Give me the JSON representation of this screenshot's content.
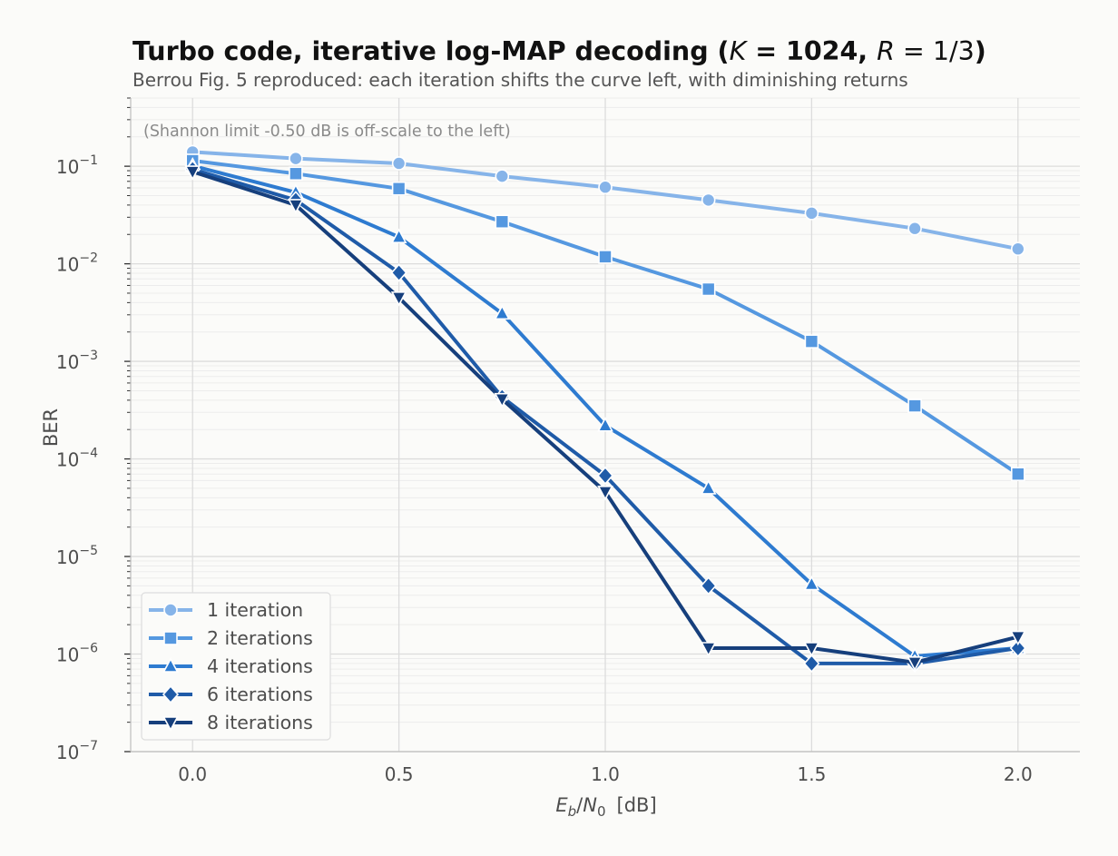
{
  "chart_data": {
    "type": "line",
    "title": "Turbo code, iterative log-MAP decoding (K = 1024, R = 1/3)",
    "title_parts": {
      "prefix": "Turbo code, iterative log-MAP decoding (",
      "k_symbol": "K",
      "k_value": " = 1024, ",
      "r_symbol": "R",
      "r_value": " = 1/3",
      "suffix": ")"
    },
    "subtitle": "Berrou Fig. 5 reproduced: each iteration shifts the curve left, with diminishing returns",
    "annotation": "(Shannon limit -0.50 dB is off-scale to the left)",
    "xlabel": "E_b/N_0 [dB]",
    "xlabel_parts": {
      "e": "E",
      "b": "b",
      "slash": "/",
      "n": "N",
      "zero": "0",
      "unit": "[dB]"
    },
    "ylabel": "BER",
    "xlim": [
      -0.15,
      2.15
    ],
    "ylim": [
      1e-07,
      0.5
    ],
    "yscale": "log",
    "grid": true,
    "legend_position": "lower-left",
    "x_ticks": [
      "0.0",
      "0.5",
      "1.0",
      "1.5",
      "2.0"
    ],
    "x_tick_values": [
      0,
      0.5,
      1.0,
      1.5,
      2.0
    ],
    "y_ticks": [
      {
        "value": 1e-07,
        "base": "10",
        "exp": "−7"
      },
      {
        "value": 1e-06,
        "base": "10",
        "exp": "−6"
      },
      {
        "value": 1e-05,
        "base": "10",
        "exp": "−5"
      },
      {
        "value": 0.0001,
        "base": "10",
        "exp": "−4"
      },
      {
        "value": 0.001,
        "base": "10",
        "exp": "−3"
      },
      {
        "value": 0.01,
        "base": "10",
        "exp": "−2"
      },
      {
        "value": 0.1,
        "base": "10",
        "exp": "−1"
      }
    ],
    "x": [
      0.0,
      0.25,
      0.5,
      0.75,
      1.0,
      1.25,
      1.5,
      1.75,
      2.0
    ],
    "series": [
      {
        "name": "1 iteration",
        "color": "#86b4e9",
        "marker": "circle",
        "values": [
          0.14,
          0.12,
          0.107,
          0.079,
          0.061,
          0.045,
          0.033,
          0.023,
          0.0142
        ]
      },
      {
        "name": "2 iterations",
        "color": "#5598e0",
        "marker": "square",
        "values": [
          0.114,
          0.084,
          0.059,
          0.027,
          0.0118,
          0.0055,
          0.0016,
          0.00035,
          7e-05
        ]
      },
      {
        "name": "4 iterations",
        "color": "#2e7bd0",
        "marker": "triangle-up",
        "values": [
          0.101,
          0.054,
          0.0188,
          0.0031,
          0.00022,
          5e-05,
          5.2e-06,
          9.5e-07,
          1.15e-06
        ]
      },
      {
        "name": "6 iterations",
        "color": "#1f5ba8",
        "marker": "diamond",
        "values": [
          0.093,
          0.045,
          0.0081,
          0.00043,
          6.75e-05,
          5e-06,
          8e-07,
          8e-07,
          1.15e-06
        ]
      },
      {
        "name": "8 iterations",
        "color": "#163f7c",
        "marker": "triangle-down",
        "values": [
          0.088,
          0.04,
          0.0045,
          0.00041,
          4.6e-05,
          1.15e-06,
          1.15e-06,
          8.2e-07,
          1.5e-06
        ]
      }
    ]
  }
}
